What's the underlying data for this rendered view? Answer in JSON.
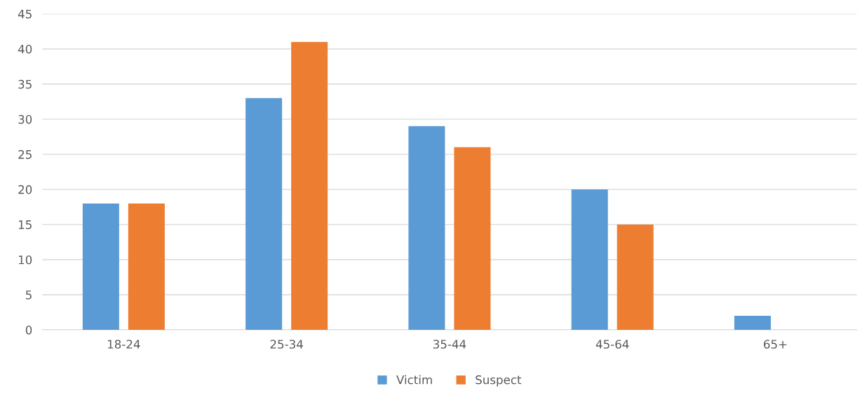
{
  "chart_data": {
    "type": "bar",
    "categories": [
      "18-24",
      "25-34",
      "35-44",
      "45-64",
      "65+"
    ],
    "series": [
      {
        "name": "Victim",
        "color": "#5b9bd5",
        "values": [
          18,
          33,
          29,
          20,
          2
        ]
      },
      {
        "name": "Suspect",
        "color": "#ed7d31",
        "values": [
          18,
          41,
          26,
          15,
          0
        ]
      }
    ],
    "ylim": [
      0,
      45
    ],
    "yticks": [
      0,
      5,
      10,
      15,
      20,
      25,
      30,
      35,
      40,
      45
    ],
    "grid": "y",
    "legend": "bottom"
  }
}
